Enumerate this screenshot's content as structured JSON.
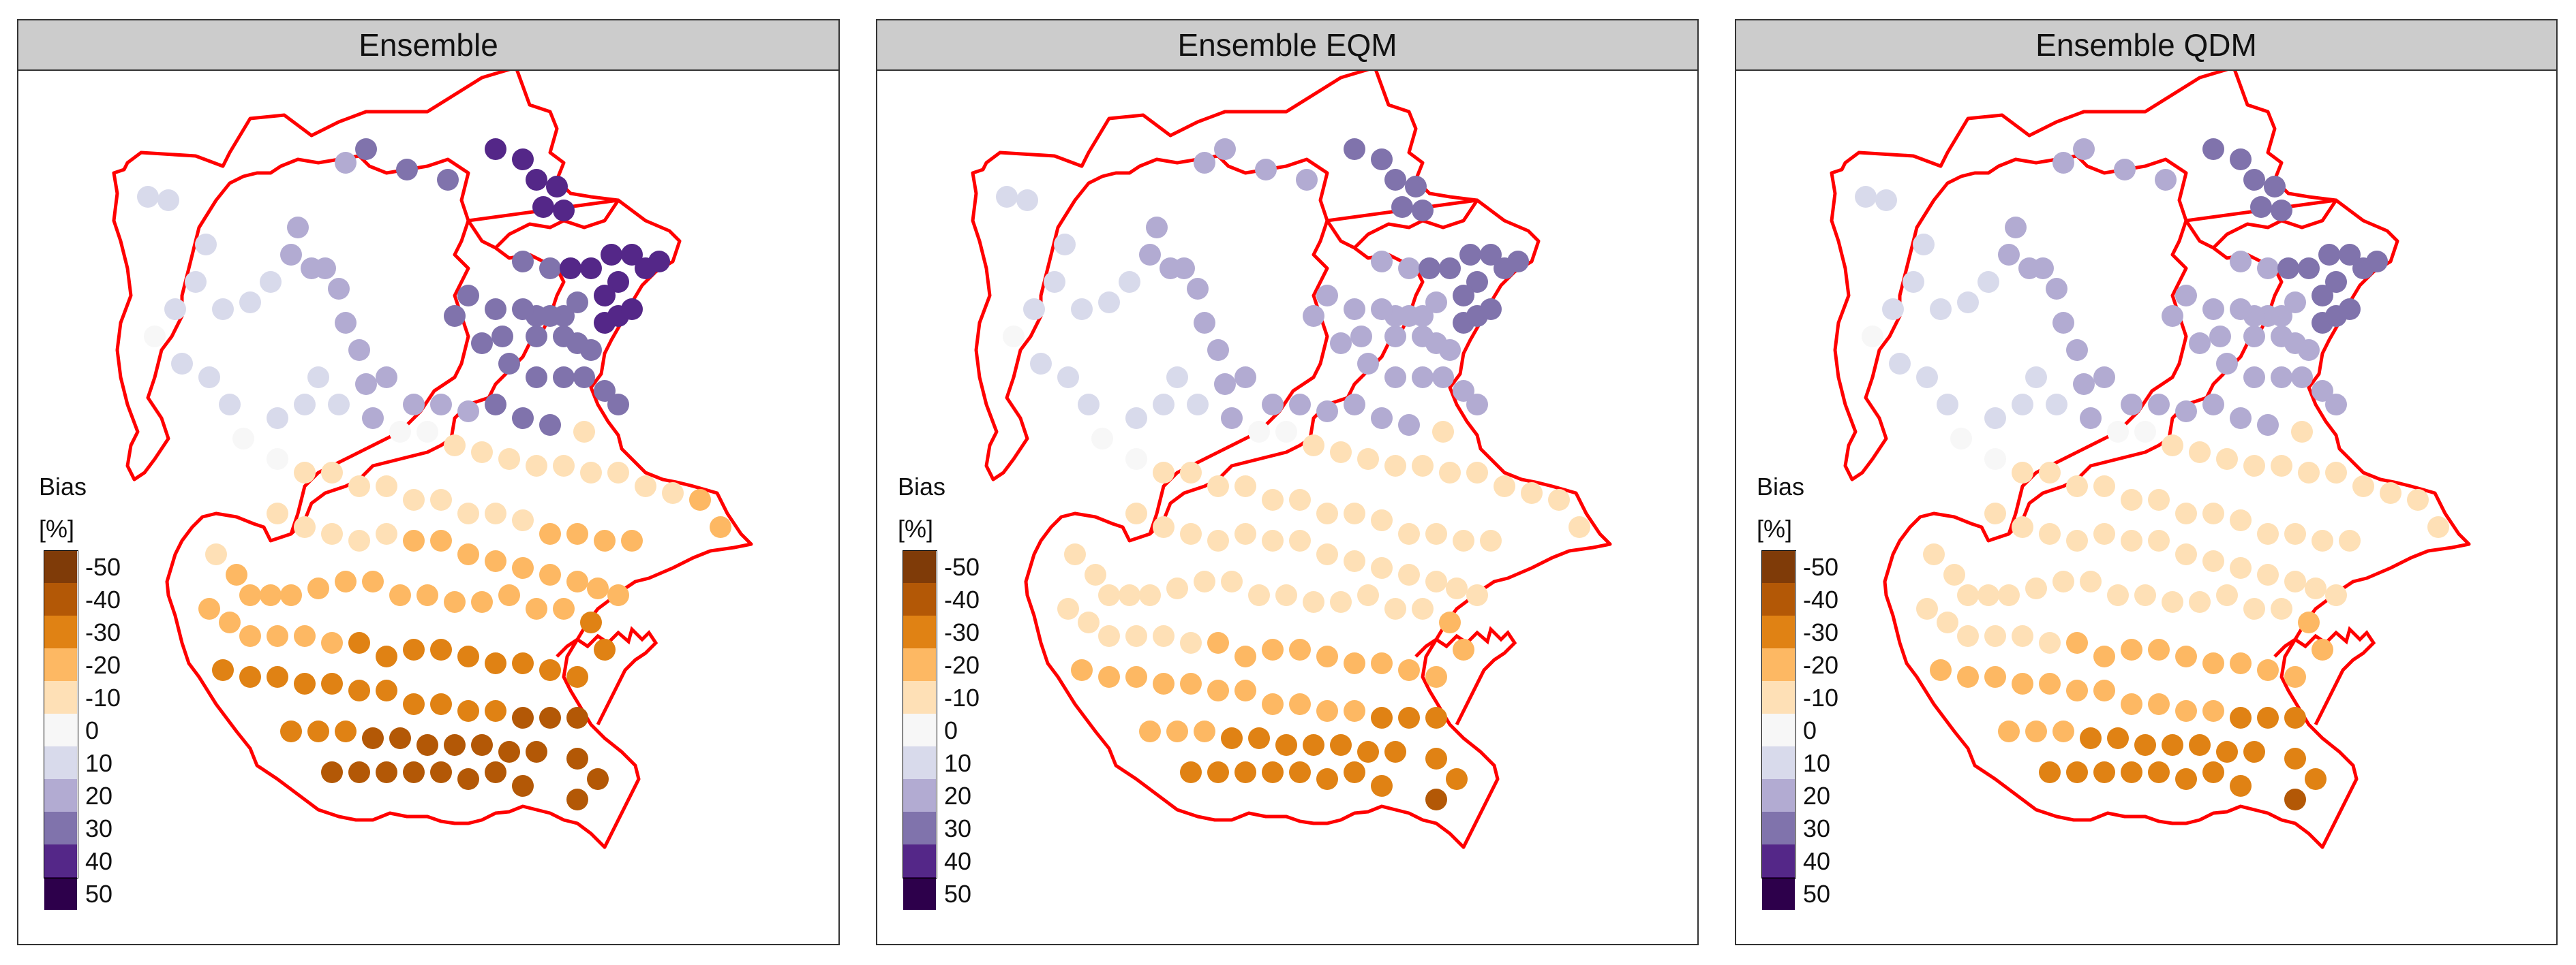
{
  "figure": {
    "panels": [
      {
        "title": "Ensemble"
      },
      {
        "title": "Ensemble EQM"
      },
      {
        "title": "Ensemble QDM"
      }
    ],
    "legend": {
      "title_line1": "Bias",
      "title_line2": "[%]",
      "items": [
        {
          "label": "-50",
          "color": "#7f3b08"
        },
        {
          "label": "-40",
          "color": "#b35806"
        },
        {
          "label": "-30",
          "color": "#e08214"
        },
        {
          "label": "-20",
          "color": "#fdb863"
        },
        {
          "label": "-10",
          "color": "#fee0b6"
        },
        {
          "label": "0",
          "color": "#f7f7f7"
        },
        {
          "label": "10",
          "color": "#d8daeb"
        },
        {
          "label": "20",
          "color": "#b2abd2"
        },
        {
          "label": "30",
          "color": "#8073ac"
        },
        {
          "label": "40",
          "color": "#542788"
        },
        {
          "label": "50",
          "color": "#2d004b"
        }
      ]
    },
    "boundary_color": "#ff0000"
  }
}
